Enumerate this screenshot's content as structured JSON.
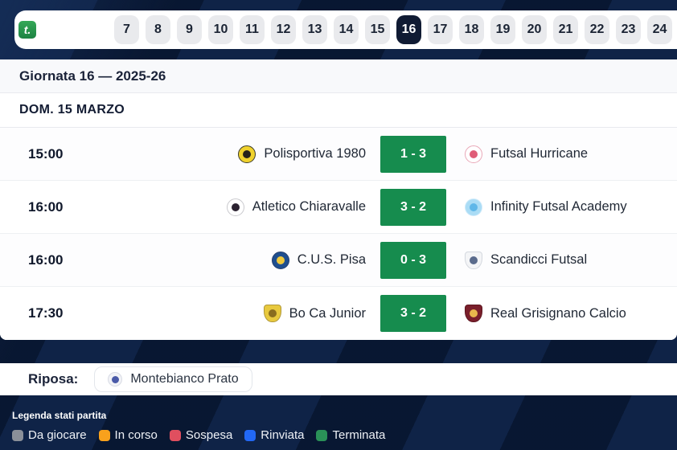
{
  "app": {
    "logo_glyph": "t."
  },
  "tabs": {
    "items": [
      "7",
      "8",
      "9",
      "10",
      "11",
      "12",
      "13",
      "14",
      "15",
      "16",
      "17",
      "18",
      "19",
      "20",
      "21",
      "22",
      "23",
      "24"
    ],
    "selected": "16"
  },
  "header": {
    "title": "Giornata 16 — 2025-26",
    "date": "DOM. 15 MARZO"
  },
  "matches": [
    {
      "time": "15:00",
      "score": "1 - 3",
      "home": {
        "name": "Polisportiva 1980",
        "logo": {
          "shape": "circle",
          "bg": "#f0d22d",
          "fg": "#26221a",
          "border": "#3a3a2a"
        }
      },
      "away": {
        "name": "Futsal Hurricane",
        "logo": {
          "shape": "circle",
          "bg": "#ffffff",
          "fg": "#df5d77",
          "border": "#e9a8b8"
        }
      }
    },
    {
      "time": "16:00",
      "score": "3 - 2",
      "home": {
        "name": "Atletico Chiaravalle",
        "logo": {
          "shape": "circle",
          "bg": "#ffffff",
          "fg": "#2b2230",
          "border": "#c9c9cd"
        }
      },
      "away": {
        "name": "Infinity Futsal Academy",
        "logo": {
          "shape": "circle",
          "bg": "#aadcf5",
          "fg": "#5fb7e8",
          "border": "#cfeafa"
        }
      }
    },
    {
      "time": "16:00",
      "score": "0 - 3",
      "home": {
        "name": "C.U.S. Pisa",
        "logo": {
          "shape": "circle",
          "bg": "#1f4f8f",
          "fg": "#f0c93c",
          "border": "#27406e"
        }
      },
      "away": {
        "name": "Scandicci Futsal",
        "logo": {
          "shape": "shield",
          "bg": "#f4f5f7",
          "fg": "#5a6b8c",
          "border": "#d4d8df"
        }
      }
    },
    {
      "time": "17:30",
      "score": "3 - 2",
      "home": {
        "name": "Bo Ca Junior",
        "logo": {
          "shape": "shield",
          "bg": "#e8c93e",
          "fg": "#8a6d1f",
          "border": "#b0983a"
        }
      },
      "away": {
        "name": "Real Grisignano Calcio",
        "logo": {
          "shape": "shield",
          "bg": "#7a1f2b",
          "fg": "#e9b84c",
          "border": "#5d1620"
        }
      }
    }
  ],
  "rest": {
    "label": "Riposa:",
    "team": {
      "name": "Montebianco Prato",
      "logo": {
        "shape": "circle",
        "bg": "#f2f3f7",
        "fg": "#4a5aa8",
        "border": "#d8dbe4"
      }
    }
  },
  "legend": {
    "title": "Legenda stati partita",
    "items": [
      {
        "label": "Da giocare",
        "color": "#8b9099"
      },
      {
        "label": "In corso",
        "color": "#f9a11c"
      },
      {
        "label": "Sospesa",
        "color": "#e04f5f"
      },
      {
        "label": "Rinviata",
        "color": "#2268f5"
      },
      {
        "label": "Terminata",
        "color": "#2a9158"
      }
    ]
  },
  "colors": {
    "score_badge": "#168c4e",
    "selected_tab": "#101b33",
    "page_background": "#0a1a38"
  }
}
